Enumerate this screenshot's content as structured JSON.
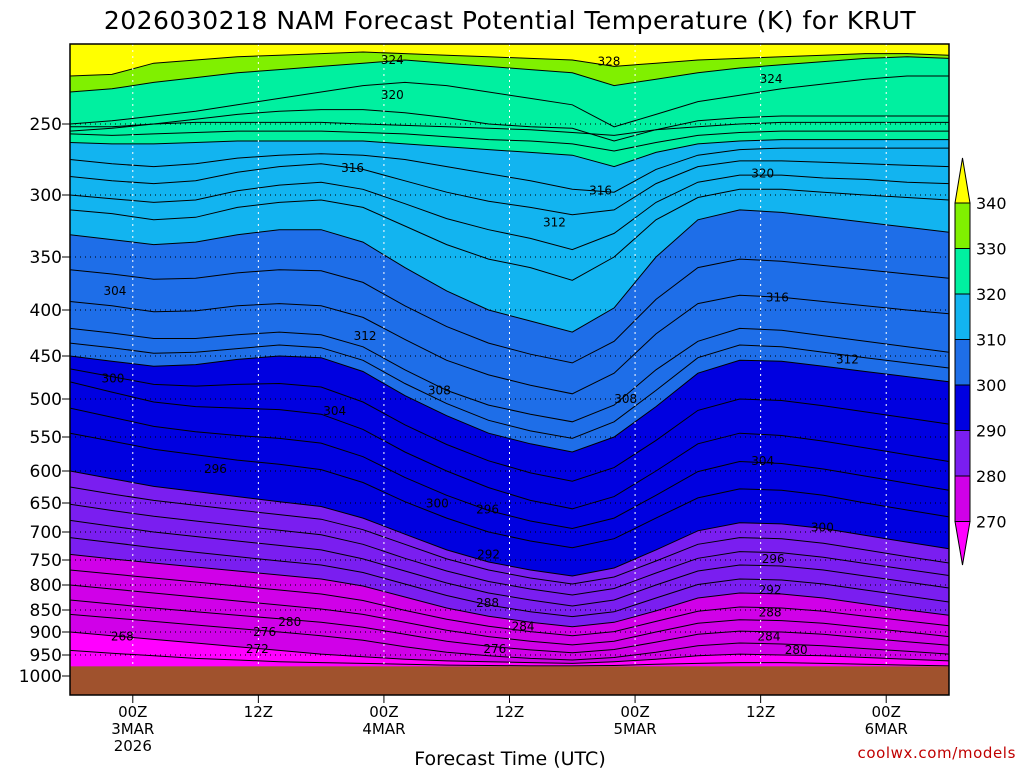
{
  "chart_data": {
    "type": "time-height-contour",
    "title": "2026030218 NAM Forecast Potential Temperature (K) for KRUT",
    "xlabel": "Forecast Time (UTC)",
    "ylabel": "",
    "y_ticks": [
      250,
      300,
      350,
      400,
      450,
      500,
      550,
      600,
      650,
      700,
      750,
      800,
      850,
      900,
      950,
      1000
    ],
    "y_range_hpa": [
      200,
      1025
    ],
    "x_ticks": [
      {
        "line1": "00Z",
        "line2": "3MAR",
        "line3": "2026",
        "hour": 6
      },
      {
        "line1": "12Z",
        "line2": "",
        "line3": "",
        "hour": 18
      },
      {
        "line1": "00Z",
        "line2": "4MAR",
        "line3": "",
        "hour": 30
      },
      {
        "line1": "12Z",
        "line2": "",
        "line3": "",
        "hour": 42
      },
      {
        "line1": "00Z",
        "line2": "5MAR",
        "line3": "",
        "hour": 54
      },
      {
        "line1": "12Z",
        "line2": "",
        "line3": "",
        "hour": 66
      },
      {
        "line1": "00Z",
        "line2": "6MAR",
        "line3": "",
        "hour": 78
      }
    ],
    "x_range_hours": [
      0,
      84
    ],
    "colorbar": {
      "levels": [
        270,
        280,
        290,
        300,
        310,
        320,
        330,
        340
      ],
      "colors": [
        "#ff00ff",
        "#d000e8",
        "#7a1ef0",
        "#0000e0",
        "#1e6ee8",
        "#12b4f0",
        "#00f0a0",
        "#80f000",
        "#ffff00"
      ]
    },
    "contour_labels": [
      {
        "text": "324",
        "hour": 30.8,
        "p": 210
      },
      {
        "text": "328",
        "hour": 51.5,
        "p": 211
      },
      {
        "text": "324",
        "hour": 67.0,
        "p": 222
      },
      {
        "text": "320",
        "hour": 30.8,
        "p": 232
      },
      {
        "text": "316",
        "hour": 27.0,
        "p": 281
      },
      {
        "text": "320",
        "hour": 66.2,
        "p": 285
      },
      {
        "text": "316",
        "hour": 50.7,
        "p": 297
      },
      {
        "text": "312",
        "hour": 46.3,
        "p": 322
      },
      {
        "text": "304",
        "hour": 4.3,
        "p": 382
      },
      {
        "text": "316",
        "hour": 67.6,
        "p": 388
      },
      {
        "text": "312",
        "hour": 28.2,
        "p": 428
      },
      {
        "text": "312",
        "hour": 74.3,
        "p": 454
      },
      {
        "text": "300",
        "hour": 4.1,
        "p": 476
      },
      {
        "text": "308",
        "hour": 35.3,
        "p": 490
      },
      {
        "text": "308",
        "hour": 53.1,
        "p": 500
      },
      {
        "text": "304",
        "hour": 25.3,
        "p": 516
      },
      {
        "text": "304",
        "hour": 66.2,
        "p": 585
      },
      {
        "text": "296",
        "hour": 13.9,
        "p": 597
      },
      {
        "text": "300",
        "hour": 35.1,
        "p": 651
      },
      {
        "text": "296",
        "hour": 39.9,
        "p": 661
      },
      {
        "text": "300",
        "hour": 71.9,
        "p": 692
      },
      {
        "text": "292",
        "hour": 40.0,
        "p": 740
      },
      {
        "text": "296",
        "hour": 67.2,
        "p": 748
      },
      {
        "text": "292",
        "hour": 66.9,
        "p": 810
      },
      {
        "text": "288",
        "hour": 39.9,
        "p": 836
      },
      {
        "text": "288",
        "hour": 66.9,
        "p": 856
      },
      {
        "text": "280",
        "hour": 21.0,
        "p": 877
      },
      {
        "text": "284",
        "hour": 43.3,
        "p": 888
      },
      {
        "text": "276",
        "hour": 18.6,
        "p": 900
      },
      {
        "text": "268",
        "hour": 5.0,
        "p": 910
      },
      {
        "text": "284",
        "hour": 66.8,
        "p": 910
      },
      {
        "text": "272",
        "hour": 17.9,
        "p": 937
      },
      {
        "text": "276",
        "hour": 40.6,
        "p": 937
      },
      {
        "text": "280",
        "hour": 69.4,
        "p": 939
      }
    ],
    "bands": [
      {
        "value": 340,
        "p": [
          220,
          219,
          212,
          210,
          208,
          207,
          206,
          205,
          206,
          207,
          208,
          209,
          210,
          214,
          212,
          210,
          209,
          208,
          207,
          206,
          206,
          207
        ]
      },
      {
        "value": 330,
        "p": [
          230,
          228,
          224,
          221,
          218,
          216,
          214,
          212,
          210,
          212,
          214,
          216,
          218,
          226,
          222,
          218,
          215,
          213,
          211,
          209,
          208,
          209
        ]
      },
      {
        "value": 328,
        "p": [
          250,
          248,
          245,
          242,
          238,
          234,
          230,
          226,
          224,
          226,
          230,
          234,
          238,
          252,
          244,
          236,
          232,
          228,
          225,
          222,
          220,
          220
        ]
      },
      {
        "value": 324,
        "p": [
          252,
          252,
          250,
          249,
          249,
          249,
          249,
          250,
          251,
          252,
          253,
          254,
          256,
          258,
          254,
          252,
          250,
          249,
          249,
          249,
          249,
          249
        ]
      },
      {
        "value": 320,
        "p": [
          263,
          264,
          264,
          263,
          262,
          262,
          262,
          262,
          264,
          266,
          268,
          270,
          272,
          280,
          270,
          264,
          262,
          261,
          261,
          261,
          261,
          261
        ]
      },
      {
        "value": 318,
        "p": [
          275,
          278,
          280,
          278,
          274,
          272,
          271,
          272,
          275,
          280,
          285,
          290,
          296,
          298,
          282,
          272,
          268,
          267,
          267,
          267,
          267,
          267
        ]
      },
      {
        "value": 316,
        "p": [
          287,
          290,
          292,
          290,
          284,
          280,
          278,
          282,
          290,
          298,
          305,
          310,
          316,
          312,
          292,
          280,
          276,
          276,
          277,
          278,
          279,
          280
        ]
      },
      {
        "value": 312,
        "p": [
          312,
          315,
          320,
          318,
          310,
          306,
          304,
          310,
          325,
          340,
          352,
          360,
          372,
          350,
          320,
          302,
          296,
          296,
          298,
          300,
          302,
          304
        ]
      },
      {
        "value": 310,
        "p": [
          332,
          336,
          340,
          338,
          332,
          328,
          328,
          338,
          360,
          382,
          400,
          412,
          424,
          398,
          350,
          320,
          312,
          314,
          318,
          322,
          326,
          330
        ]
      },
      {
        "value": 300,
        "p": [
          450,
          456,
          462,
          460,
          454,
          450,
          452,
          468,
          496,
          522,
          545,
          560,
          572,
          550,
          510,
          470,
          455,
          456,
          462,
          468,
          474,
          480
        ]
      },
      {
        "value": 296,
        "p": [
          480,
          492,
          504,
          510,
          512,
          514,
          520,
          540,
          572,
          600,
          626,
          646,
          660,
          640,
          600,
          560,
          545,
          548,
          556,
          566,
          576,
          586
        ]
      },
      {
        "value": 292,
        "p": [
          545,
          556,
          568,
          576,
          584,
          590,
          598,
          618,
          648,
          676,
          700,
          716,
          728,
          712,
          676,
          642,
          628,
          630,
          638,
          650,
          662,
          674
        ]
      },
      {
        "value": 290,
        "p": [
          600,
          612,
          624,
          632,
          640,
          648,
          656,
          676,
          704,
          732,
          754,
          770,
          782,
          766,
          732,
          698,
          684,
          686,
          694,
          706,
          718,
          730
        ]
      },
      {
        "value": 288,
        "p": [
          625,
          636,
          646,
          654,
          662,
          670,
          678,
          696,
          722,
          748,
          770,
          786,
          798,
          784,
          752,
          722,
          710,
          712,
          720,
          732,
          744,
          756
        ]
      },
      {
        "value": 284,
        "p": [
          680,
          690,
          700,
          708,
          716,
          724,
          732,
          748,
          772,
          796,
          816,
          830,
          842,
          830,
          800,
          772,
          760,
          762,
          770,
          782,
          794,
          806
        ]
      },
      {
        "value": 280,
        "p": [
          740,
          748,
          756,
          764,
          772,
          780,
          788,
          802,
          824,
          846,
          864,
          878,
          888,
          878,
          852,
          826,
          816,
          818,
          826,
          838,
          850,
          862
        ]
      },
      {
        "value": 276,
        "p": [
          800,
          808,
          816,
          824,
          832,
          840,
          848,
          860,
          878,
          896,
          910,
          920,
          928,
          920,
          900,
          880,
          872,
          874,
          880,
          890,
          900,
          910
        ]
      },
      {
        "value": 272,
        "p": [
          860,
          868,
          876,
          884,
          892,
          900,
          908,
          918,
          932,
          944,
          952,
          958,
          962,
          956,
          944,
          930,
          924,
          926,
          930,
          936,
          942,
          948
        ]
      },
      {
        "value": 270,
        "p": [
          900,
          908,
          916,
          924,
          932,
          940,
          948,
          954,
          960,
          964,
          966,
          968,
          970,
          966,
          960,
          952,
          948,
          950,
          952,
          956,
          960,
          964
        ]
      },
      {
        "value": 268,
        "p": [
          940,
          946,
          952,
          958,
          962,
          966,
          968,
          970,
          972,
          974,
          975,
          976,
          976,
          975,
          972,
          970,
          968,
          968,
          970,
          972,
          974,
          976
        ]
      }
    ],
    "isentropes": [
      {
        "value": 326,
        "p": [
          255,
          253,
          250,
          247,
          244,
          242,
          241,
          241,
          243,
          246,
          250,
          252,
          253,
          262,
          254,
          248,
          246,
          245,
          245,
          245,
          245,
          245
        ]
      },
      {
        "value": 322,
        "p": [
          257,
          258,
          257,
          256,
          255,
          255,
          255,
          256,
          257,
          259,
          261,
          262,
          264,
          269,
          263,
          258,
          256,
          255,
          255,
          255,
          255,
          255
        ]
      },
      {
        "value": 314,
        "p": [
          300,
          303,
          306,
          304,
          297,
          293,
          291,
          296,
          307,
          319,
          328,
          335,
          344,
          331,
          306,
          291,
          286,
          286,
          288,
          289,
          291,
          292
        ]
      },
      {
        "value": 308,
        "p": [
          362,
          366,
          371,
          370,
          365,
          362,
          363,
          374,
          396,
          418,
          436,
          448,
          458,
          434,
          390,
          360,
          352,
          354,
          358,
          362,
          366,
          370
        ]
      },
      {
        "value": 306,
        "p": [
          392,
          396,
          402,
          401,
          396,
          394,
          396,
          408,
          432,
          455,
          472,
          484,
          494,
          470,
          426,
          394,
          386,
          388,
          392,
          396,
          400,
          404
        ]
      },
      {
        "value": 304,
        "p": [
          420,
          425,
          431,
          431,
          427,
          424,
          427,
          440,
          466,
          490,
          508,
          520,
          530,
          508,
          466,
          434,
          420,
          422,
          428,
          434,
          440,
          446
        ]
      },
      {
        "value": 302,
        "p": [
          436,
          441,
          447,
          446,
          442,
          438,
          441,
          455,
          482,
          506,
          528,
          542,
          552,
          530,
          490,
          452,
          438,
          440,
          446,
          452,
          458,
          464
        ]
      },
      {
        "value": 298,
        "p": [
          465,
          474,
          483,
          485,
          483,
          482,
          486,
          504,
          534,
          561,
          585,
          603,
          616,
          595,
          555,
          515,
          500,
          502,
          509,
          517,
          525,
          533
        ]
      },
      {
        "value": 294,
        "p": [
          512,
          524,
          536,
          543,
          548,
          552,
          559,
          579,
          610,
          638,
          663,
          681,
          694,
          676,
          638,
          601,
          586,
          589,
          597,
          608,
          619,
          630
        ]
      },
      {
        "value": 286,
        "p": [
          652,
          663,
          673,
          681,
          689,
          697,
          705,
          722,
          747,
          772,
          793,
          808,
          820,
          807,
          776,
          747,
          735,
          737,
          745,
          757,
          769,
          781
        ]
      },
      {
        "value": 282,
        "p": [
          710,
          719,
          728,
          736,
          744,
          752,
          760,
          775,
          798,
          821,
          840,
          854,
          865,
          854,
          826,
          799,
          788,
          790,
          798,
          810,
          822,
          834
        ]
      },
      {
        "value": 278,
        "p": [
          770,
          778,
          786,
          794,
          802,
          810,
          818,
          831,
          851,
          871,
          887,
          899,
          908,
          899,
          876,
          853,
          844,
          846,
          853,
          864,
          875,
          886
        ]
      },
      {
        "value": 274,
        "p": [
          830,
          838,
          846,
          854,
          862,
          870,
          878,
          889,
          905,
          920,
          931,
          939,
          945,
          938,
          922,
          905,
          898,
          900,
          905,
          913,
          921,
          929
        ]
      }
    ],
    "hour_grid": [
      0,
      4,
      8,
      12,
      16,
      20,
      24,
      28,
      32,
      36,
      40,
      44,
      48,
      52,
      56,
      60,
      64,
      68,
      72,
      76,
      80,
      84
    ],
    "ground_color": "#a0522d"
  },
  "credit": "coolwx.com/models"
}
